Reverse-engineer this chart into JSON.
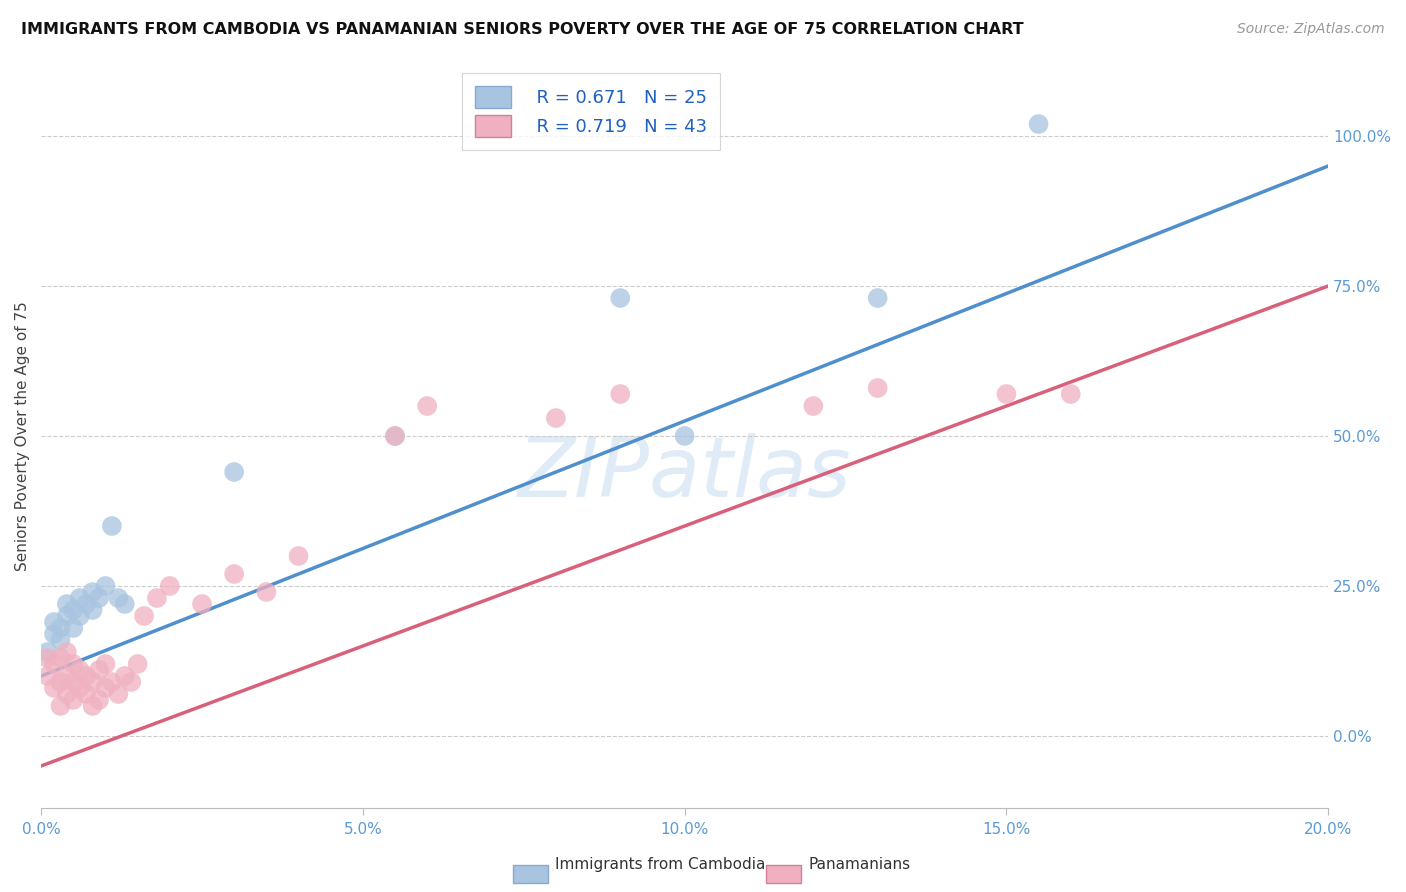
{
  "title": "IMMIGRANTS FROM CAMBODIA VS PANAMANIAN SENIORS POVERTY OVER THE AGE OF 75 CORRELATION CHART",
  "source": "Source: ZipAtlas.com",
  "ylabel": "Seniors Poverty Over the Age of 75",
  "watermark": "ZIPatlas",
  "cambodia_R": "R = 0.671",
  "cambodia_N": "N = 25",
  "panama_R": "R = 0.719",
  "panama_N": "N = 43",
  "cambodia_scatter_color": "#a8c4e0",
  "cambodia_line_color": "#4f8fcc",
  "panama_scatter_color": "#f0b0c0",
  "panama_line_color": "#d9607a",
  "xlim": [
    0.0,
    0.2
  ],
  "ylim": [
    -0.12,
    1.12
  ],
  "cambodia_x": [
    0.001,
    0.002,
    0.002,
    0.003,
    0.003,
    0.004,
    0.004,
    0.005,
    0.005,
    0.006,
    0.006,
    0.007,
    0.008,
    0.008,
    0.009,
    0.01,
    0.011,
    0.012,
    0.013,
    0.03,
    0.055,
    0.09,
    0.1,
    0.13,
    0.155
  ],
  "cambodia_y": [
    0.14,
    0.17,
    0.19,
    0.16,
    0.18,
    0.2,
    0.22,
    0.18,
    0.21,
    0.2,
    0.23,
    0.22,
    0.21,
    0.24,
    0.23,
    0.25,
    0.35,
    0.23,
    0.22,
    0.44,
    0.5,
    0.73,
    0.5,
    0.73,
    1.02
  ],
  "panama_x": [
    0.001,
    0.001,
    0.002,
    0.002,
    0.003,
    0.003,
    0.003,
    0.004,
    0.004,
    0.004,
    0.005,
    0.005,
    0.005,
    0.006,
    0.006,
    0.007,
    0.007,
    0.008,
    0.008,
    0.009,
    0.009,
    0.01,
    0.01,
    0.011,
    0.012,
    0.013,
    0.014,
    0.015,
    0.016,
    0.018,
    0.02,
    0.025,
    0.03,
    0.035,
    0.04,
    0.055,
    0.06,
    0.08,
    0.09,
    0.12,
    0.13,
    0.15,
    0.16
  ],
  "panama_y": [
    0.1,
    0.13,
    0.08,
    0.12,
    0.05,
    0.09,
    0.13,
    0.07,
    0.1,
    0.14,
    0.06,
    0.09,
    0.12,
    0.08,
    0.11,
    0.07,
    0.1,
    0.05,
    0.09,
    0.06,
    0.11,
    0.08,
    0.12,
    0.09,
    0.07,
    0.1,
    0.09,
    0.12,
    0.2,
    0.23,
    0.25,
    0.22,
    0.27,
    0.24,
    0.3,
    0.5,
    0.55,
    0.53,
    0.57,
    0.55,
    0.58,
    0.57,
    0.57
  ],
  "trend_cambodia_x0": 0.0,
  "trend_cambodia_y0": 0.1,
  "trend_cambodia_x1": 0.2,
  "trend_cambodia_y1": 0.95,
  "trend_panama_x0": 0.0,
  "trend_panama_y0": -0.05,
  "trend_panama_x1": 0.2,
  "trend_panama_y1": 0.75
}
